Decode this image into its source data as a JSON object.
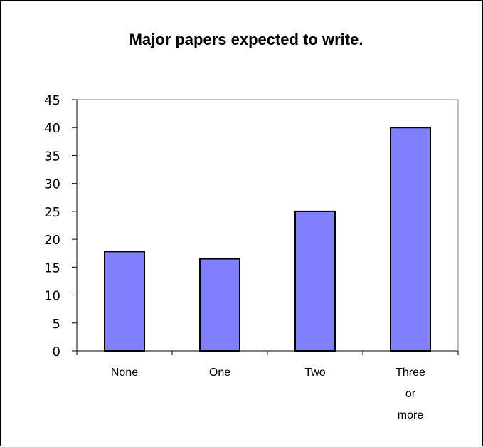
{
  "chart_data": {
    "type": "bar",
    "title": "Major papers expected to write.",
    "xlabel": "",
    "ylabel": "",
    "categories": [
      [
        "None"
      ],
      [
        "One"
      ],
      [
        "Two"
      ],
      [
        "Three",
        "or",
        "more"
      ]
    ],
    "values": [
      17.8,
      16.5,
      25,
      40
    ],
    "ylim": [
      0,
      45
    ],
    "yticks": [
      0,
      5,
      10,
      15,
      20,
      25,
      30,
      35,
      40,
      45
    ],
    "grid": false,
    "legend": "none",
    "colors": {
      "bar_fill": "#8080ff",
      "bar_stroke": "#000000",
      "axis": "#000000",
      "plot_border": "#808080",
      "background": "#ffffff"
    }
  }
}
